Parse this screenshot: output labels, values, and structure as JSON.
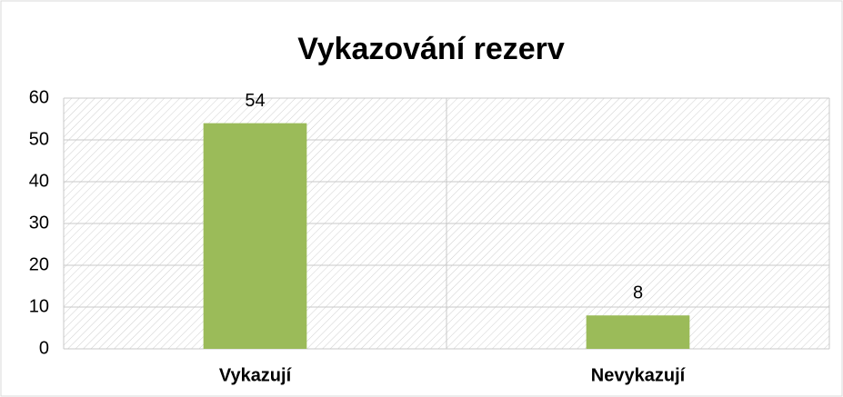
{
  "chart_data": {
    "type": "bar",
    "title": "Vykazování rezerv",
    "categories": [
      "Vykazují",
      "Nevykazují"
    ],
    "values": [
      54,
      8
    ],
    "color": "#9bbb59",
    "ylim": [
      0,
      60
    ],
    "yticks": [
      0,
      10,
      20,
      30,
      40,
      50,
      60
    ],
    "grid": true
  }
}
